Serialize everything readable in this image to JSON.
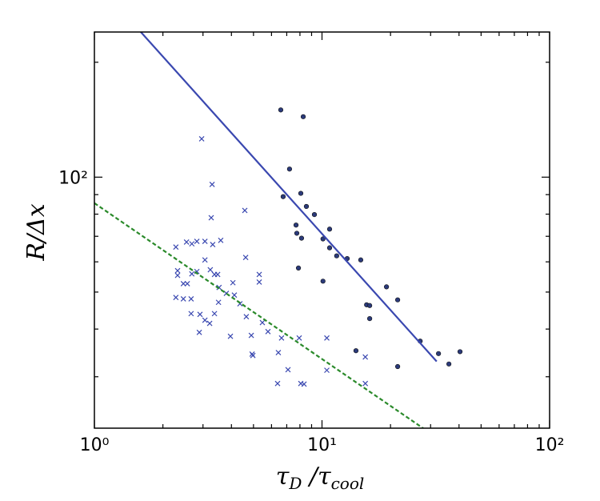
{
  "chart_data": {
    "type": "scatter",
    "xlabel": [
      "τ",
      "D",
      " /τ",
      "cool"
    ],
    "ylabel": "R/Δx",
    "xlog": true,
    "ylog": true,
    "xlim": [
      1,
      100
    ],
    "ylim": [
      22,
      240
    ],
    "xticks": [
      {
        "value": 1,
        "label": "10⁰"
      },
      {
        "value": 10,
        "label": "10¹"
      },
      {
        "value": 100,
        "label": "10²"
      }
    ],
    "yticks": [
      {
        "value": 100,
        "label": "10²"
      }
    ],
    "xminorticks": [
      2,
      3,
      4,
      5,
      6,
      7,
      8,
      9,
      20,
      30,
      40,
      50,
      60,
      70,
      80,
      90
    ],
    "yminorticks": [
      30,
      40,
      50,
      60,
      70,
      80,
      90,
      200
    ],
    "series": [
      {
        "type": "scatter",
        "marker": "o",
        "color": "#2b3a7a",
        "x": [
          6.59,
          8.27,
          7.2,
          6.75,
          8.07,
          8.54,
          9.26,
          7.69,
          7.75,
          8.13,
          10.8,
          10.1,
          10.8,
          11.6,
          12.9,
          14.8,
          7.88,
          10.1,
          19.2,
          21.5,
          15.7,
          16.2,
          16.2,
          14.1,
          21.5,
          27.0,
          32.5,
          36.1,
          40.4
        ],
        "values": [
          150,
          144,
          105,
          88.9,
          90.7,
          83.8,
          79.8,
          74.9,
          71.3,
          69.2,
          73.1,
          68.9,
          65.3,
          62.2,
          61.2,
          60.7,
          57.8,
          53.4,
          51.6,
          47.7,
          46.3,
          46.1,
          42.6,
          35.1,
          31.9,
          37.2,
          34.5,
          32.4,
          34.9
        ]
      },
      {
        "type": "scatter",
        "marker": "x",
        "color": "#3a48b0",
        "x": [
          2.96,
          3.29,
          2.28,
          2.54,
          2.68,
          2.82,
          3.06,
          3.31,
          3.59,
          2.32,
          2.32,
          2.46,
          2.56,
          2.68,
          2.82,
          3.06,
          3.23,
          3.37,
          3.48,
          3.26,
          4.58,
          4.62,
          3.53,
          4.06,
          5.3,
          5.3,
          2.28,
          2.46,
          2.66,
          2.66,
          2.91,
          3.06,
          3.21,
          3.37,
          3.51,
          3.8,
          4.12,
          4.36,
          4.65,
          3.96,
          2.89,
          4.89,
          4.93,
          4.97,
          5.79,
          5.47,
          6.43,
          6.64,
          7.94,
          7.09,
          6.38,
          8.07,
          8.34,
          10.5,
          10.5,
          15.5,
          15.5
        ],
        "values": [
          126,
          95.7,
          65.6,
          67.6,
          66.9,
          67.9,
          67.9,
          66.6,
          68.3,
          56.9,
          55.3,
          52.6,
          52.6,
          55.8,
          56.6,
          60.7,
          57.2,
          55.6,
          55.6,
          78.3,
          81.8,
          61.6,
          51.4,
          52.9,
          55.6,
          53.1,
          48.4,
          48.0,
          48.0,
          43.9,
          43.7,
          42.2,
          41.4,
          43.9,
          47.0,
          49.6,
          49.1,
          46.6,
          43.1,
          38.3,
          39.2,
          38.5,
          34.4,
          34.1,
          39.4,
          41.6,
          34.7,
          37.9,
          37.9,
          31.3,
          28.8,
          28.8,
          28.7,
          37.9,
          31.2,
          28.8,
          33.8
        ]
      },
      {
        "type": "line",
        "color": "#3a48b0",
        "dashed": false,
        "x": [
          1.56,
          31.9
        ],
        "values": [
          244,
          32.9
        ]
      },
      {
        "type": "line",
        "color": "#2a8a2a",
        "dashed": true,
        "x": [
          1,
          28.1
        ],
        "values": [
          85.5,
          21.9
        ]
      }
    ]
  }
}
